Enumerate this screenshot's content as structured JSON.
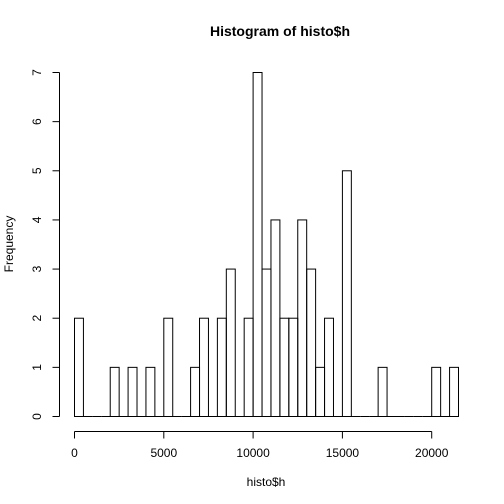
{
  "chart_data": {
    "type": "bar",
    "title": "Histogram of histo$h",
    "xlabel": "histo$h",
    "ylabel": "Frequency",
    "bin_width": 500,
    "xlim": [
      0,
      21500
    ],
    "ylim": [
      0,
      7
    ],
    "x_ticks": [
      0,
      5000,
      10000,
      15000,
      20000
    ],
    "y_ticks": [
      0,
      1,
      2,
      3,
      4,
      5,
      6,
      7
    ],
    "bin_starts": [
      0,
      500,
      1000,
      1500,
      2000,
      2500,
      3000,
      3500,
      4000,
      4500,
      5000,
      5500,
      6000,
      6500,
      7000,
      7500,
      8000,
      8500,
      9000,
      9500,
      10000,
      10500,
      11000,
      11500,
      12000,
      12500,
      13000,
      13500,
      14000,
      14500,
      15000,
      15500,
      16000,
      16500,
      17000,
      17500,
      18000,
      18500,
      19000,
      19500,
      20000,
      20500,
      21000
    ],
    "values": [
      2,
      0,
      0,
      0,
      1,
      0,
      1,
      0,
      1,
      0,
      2,
      0,
      0,
      1,
      2,
      0,
      2,
      3,
      0,
      2,
      7,
      3,
      4,
      2,
      2,
      4,
      3,
      1,
      2,
      0,
      5,
      0,
      0,
      0,
      1,
      0,
      0,
      0,
      0,
      0,
      1,
      0,
      1
    ]
  }
}
